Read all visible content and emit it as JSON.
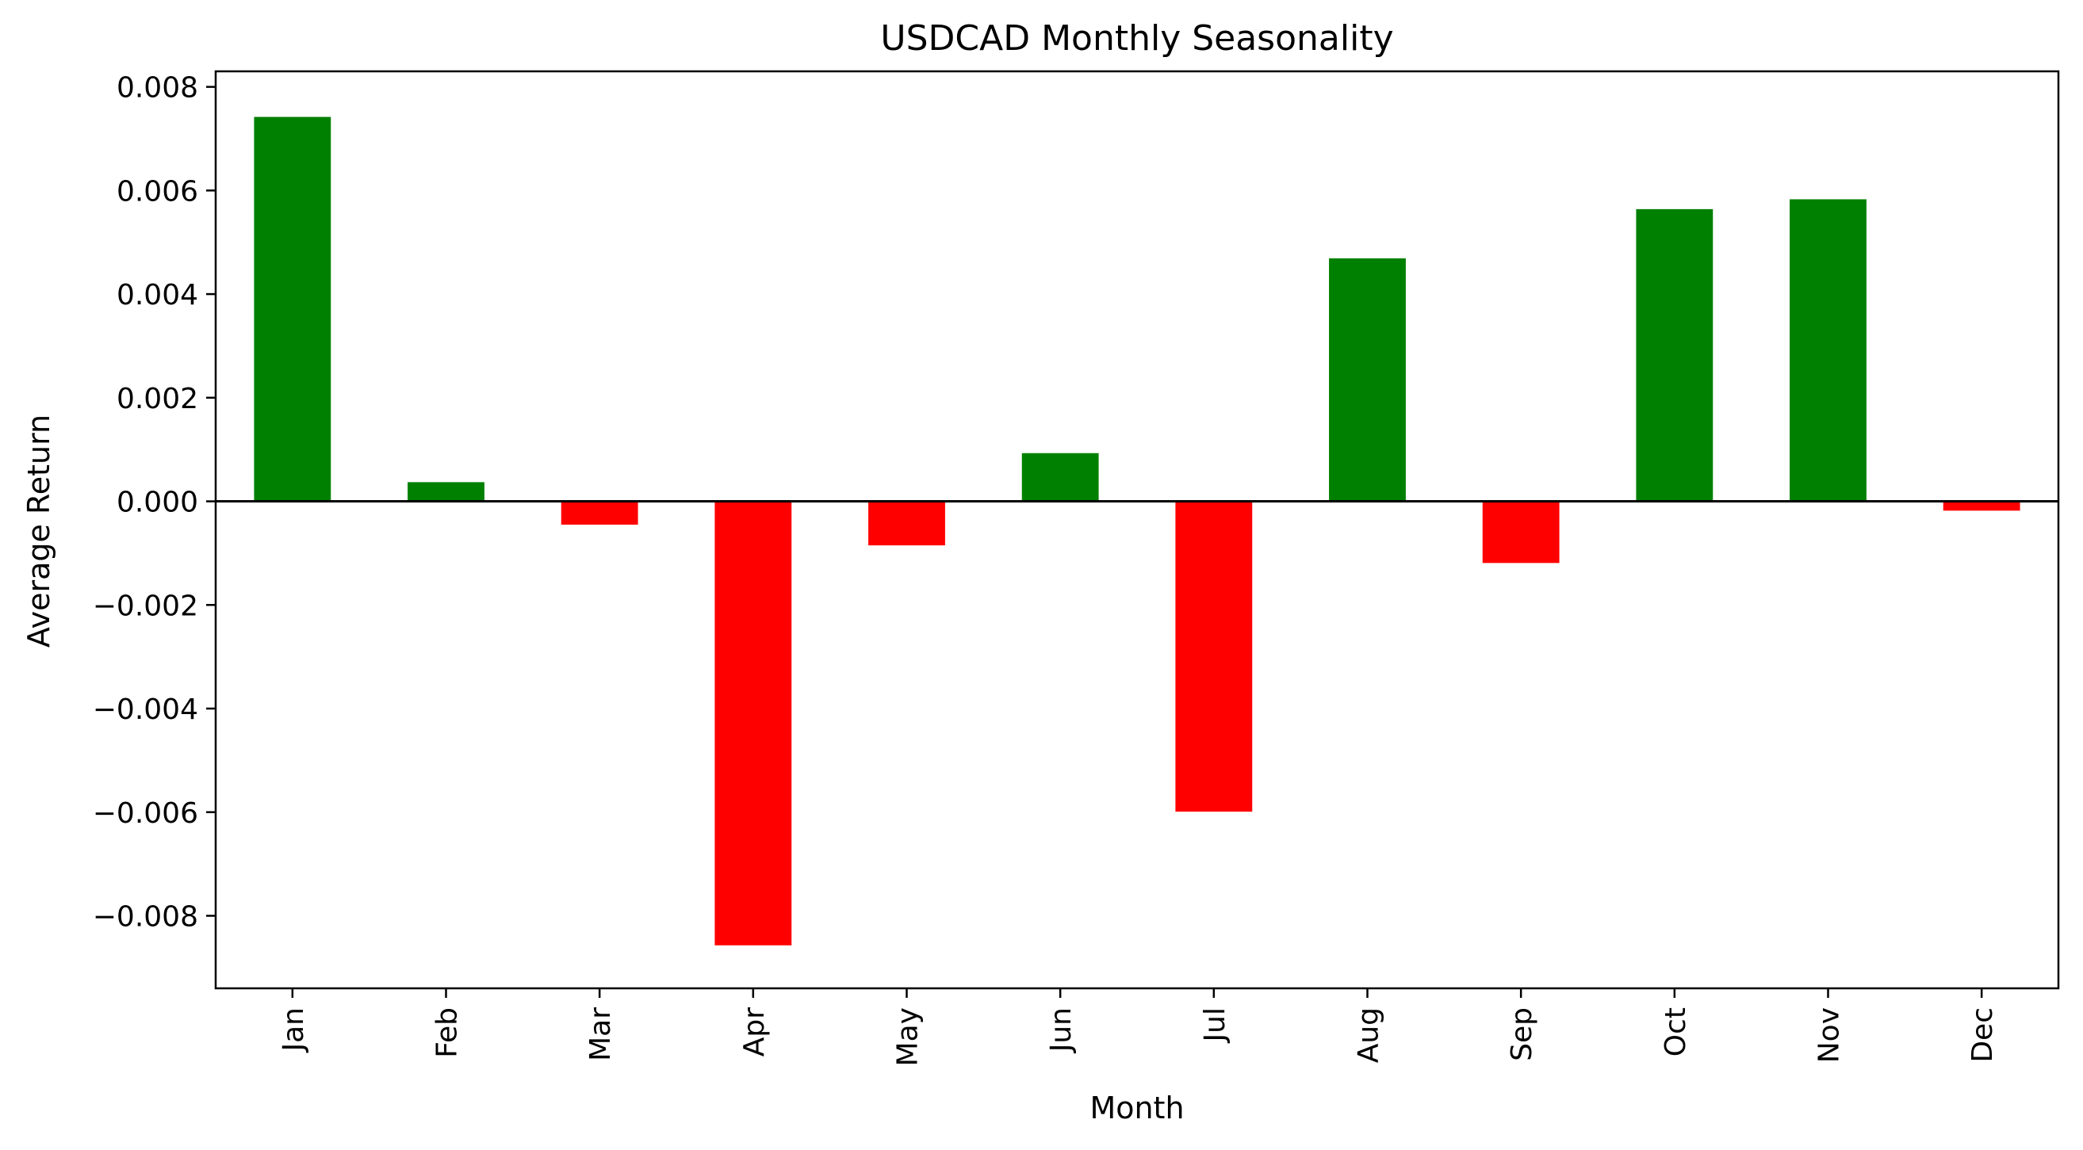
{
  "chart_data": {
    "type": "bar",
    "title": "USDCAD Monthly Seasonality",
    "xlabel": "Month",
    "ylabel": "Average Return",
    "categories": [
      "Jan",
      "Feb",
      "Mar",
      "Apr",
      "May",
      "Jun",
      "Jul",
      "Aug",
      "Sep",
      "Oct",
      "Nov",
      "Dec"
    ],
    "values": [
      0.00742,
      0.00037,
      -0.00045,
      -0.00857,
      -0.00085,
      0.00093,
      -0.00599,
      0.00469,
      -0.00119,
      0.00564,
      0.00583,
      -0.00018
    ],
    "ylim": [
      -0.0094,
      0.0083
    ],
    "yticks": [
      -0.008,
      -0.006,
      -0.004,
      -0.002,
      0.0,
      0.002,
      0.004,
      0.006,
      0.008
    ],
    "ytick_labels": [
      "−0.008",
      "−0.006",
      "−0.004",
      "−0.002",
      "0.000",
      "0.002",
      "0.004",
      "0.006",
      "0.008"
    ],
    "grid": false,
    "zero_line": true,
    "colors": {
      "positive": "#008000",
      "negative": "#ff0000"
    }
  }
}
